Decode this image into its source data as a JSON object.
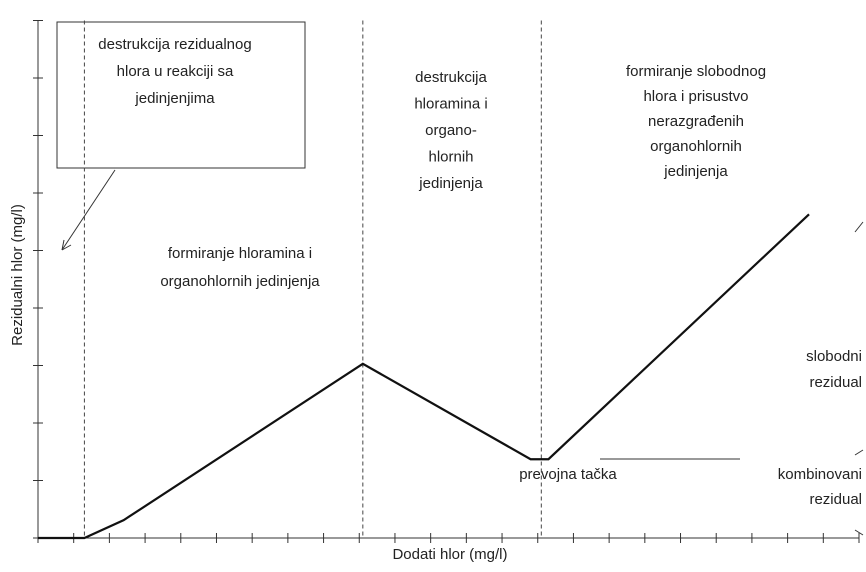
{
  "chart_data": {
    "type": "line",
    "x_label": "Dodati hlor (mg/l)",
    "y_label": "Rezidualni hlor (mg/l)",
    "x": [
      0,
      1.3,
      2.4,
      9.1,
      13.8,
      14.3,
      21.6
    ],
    "values": [
      0,
      0,
      0.31,
      3.03,
      1.37,
      1.37,
      5.63
    ],
    "color": "#111111",
    "xlim": [
      0,
      23
    ],
    "ylim": [
      0,
      9
    ],
    "xticks": [
      0,
      1,
      2,
      3,
      4,
      5,
      6,
      7,
      8,
      9,
      10,
      11,
      12,
      13,
      14,
      15,
      16,
      17,
      18,
      19,
      20,
      21,
      22,
      23
    ],
    "yticks": [
      0,
      1,
      2,
      3,
      4,
      5,
      6,
      7,
      8,
      9
    ],
    "dividers": [
      1.3,
      9.1,
      14.1
    ],
    "annotations": {
      "box": [
        "destrukcija rezidualnog",
        "hlora u reakciji sa",
        "jedinjenjima"
      ],
      "zone2": [
        "formiranje hloramina i",
        "organohlornih jedinjenja"
      ],
      "zone3": [
        "destrukcija",
        "hloramina i",
        "organo-",
        "hlornih",
        "jedinjenja"
      ],
      "zone4": [
        "formiranje slobodnog",
        "hlora i prisustvo",
        "nerazgrađenih",
        "organohlornih",
        "jedinjenja"
      ],
      "breakpoint": "prevojna tačka",
      "free": [
        "slobodni",
        "rezidual"
      ],
      "combined": [
        "kombinovani",
        "rezidual"
      ]
    }
  }
}
